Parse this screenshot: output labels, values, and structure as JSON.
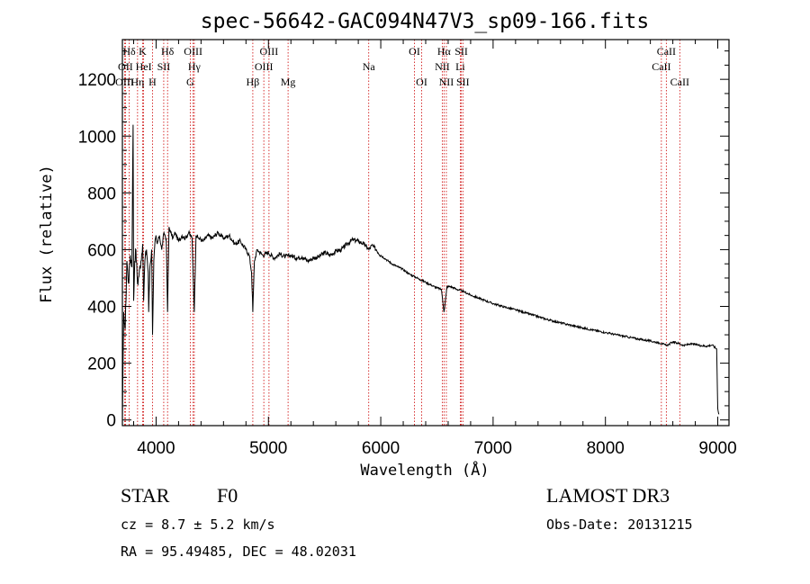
{
  "chart_data": {
    "type": "line",
    "title": "spec-56642-GAC094N47V3_sp09-166.fits",
    "xlabel": "Wavelength (Å)",
    "ylabel": "Flux (relative)",
    "xlim": [
      3700,
      9100
    ],
    "ylim": [
      -20,
      1340
    ],
    "x_ticks": [
      4000,
      5000,
      6000,
      7000,
      8000,
      9000
    ],
    "y_ticks": [
      0,
      200,
      400,
      600,
      800,
      1000,
      1200
    ],
    "x_tick_labels": [
      "4000",
      "5000",
      "6000",
      "7000",
      "8000",
      "9000"
    ],
    "y_tick_labels": [
      "0",
      "200",
      "400",
      "600",
      "800",
      "1000",
      "1200"
    ],
    "series": [
      {
        "name": "flux",
        "x": [
          3700,
          3712,
          3725,
          3740,
          3755,
          3770,
          3785,
          3795,
          3800,
          3810,
          3820,
          3835,
          3850,
          3865,
          3880,
          3889,
          3900,
          3915,
          3930,
          3934,
          3945,
          3960,
          3968,
          3980,
          3995,
          4010,
          4030,
          4050,
          4070,
          4090,
          4102,
          4115,
          4130,
          4150,
          4170,
          4200,
          4230,
          4260,
          4290,
          4320,
          4340,
          4355,
          4380,
          4420,
          4460,
          4500,
          4550,
          4600,
          4650,
          4700,
          4750,
          4800,
          4830,
          4850,
          4861,
          4875,
          4900,
          4950,
          5000,
          5050,
          5100,
          5150,
          5200,
          5250,
          5300,
          5350,
          5400,
          5450,
          5500,
          5550,
          5600,
          5650,
          5700,
          5750,
          5800,
          5850,
          5895,
          5920,
          5960,
          6000,
          6050,
          6100,
          6150,
          6200,
          6250,
          6300,
          6350,
          6400,
          6450,
          6500,
          6540,
          6563,
          6590,
          6620,
          6680,
          6750,
          6800,
          6900,
          7000,
          7100,
          7200,
          7300,
          7400,
          7500,
          7600,
          7700,
          7800,
          7900,
          8000,
          8100,
          8200,
          8300,
          8400,
          8500,
          8540,
          8560,
          8600,
          8650,
          8700,
          8750,
          8800,
          8850,
          8900,
          8950,
          8990,
          9000,
          9010
        ],
        "values": [
          0,
          380,
          320,
          560,
          480,
          580,
          540,
          1040,
          420,
          560,
          600,
          480,
          520,
          560,
          620,
          420,
          560,
          600,
          520,
          380,
          540,
          600,
          300,
          560,
          640,
          620,
          650,
          600,
          660,
          640,
          380,
          680,
          660,
          640,
          660,
          630,
          650,
          640,
          660,
          640,
          380,
          650,
          640,
          630,
          650,
          640,
          660,
          640,
          650,
          620,
          630,
          600,
          580,
          520,
          380,
          560,
          600,
          580,
          590,
          570,
          585,
          575,
          580,
          570,
          575,
          560,
          570,
          575,
          590,
          580,
          595,
          600,
          620,
          635,
          630,
          620,
          600,
          615,
          600,
          580,
          565,
          550,
          540,
          530,
          515,
          505,
          495,
          485,
          475,
          465,
          460,
          380,
          470,
          470,
          460,
          450,
          440,
          425,
          410,
          398,
          388,
          376,
          364,
          352,
          342,
          333,
          324,
          316,
          308,
          300,
          292,
          285,
          278,
          270,
          262,
          265,
          275,
          270,
          262,
          268,
          266,
          262,
          260,
          264,
          250,
          40,
          20
        ]
      }
    ],
    "spectral_lines": [
      {
        "label": "Hδ",
        "wavelength": 3760,
        "row": 1
      },
      {
        "label": "K",
        "wavelength": 3880,
        "row": 1
      },
      {
        "label": "Hδ",
        "wavelength": 4102,
        "row": 1
      },
      {
        "label": "OIII",
        "wavelength": 4330,
        "row": 1
      },
      {
        "label": "OIII",
        "wavelength": 5005,
        "row": 1
      },
      {
        "label": "OI",
        "wavelength": 6300,
        "row": 1
      },
      {
        "label": "Hα",
        "wavelength": 6563,
        "row": 1
      },
      {
        "label": "SII",
        "wavelength": 6717,
        "row": 1
      },
      {
        "label": "CaII",
        "wavelength": 8542,
        "row": 1
      },
      {
        "label": "OII",
        "wavelength": 3727,
        "row": 2
      },
      {
        "label": "HeI",
        "wavelength": 3889,
        "row": 2
      },
      {
        "label": "SII",
        "wavelength": 4068,
        "row": 2
      },
      {
        "label": "Hγ",
        "wavelength": 4340,
        "row": 2
      },
      {
        "label": "OIII",
        "wavelength": 4959,
        "row": 2
      },
      {
        "label": "Na",
        "wavelength": 5893,
        "row": 2
      },
      {
        "label": "NII",
        "wavelength": 6548,
        "row": 2
      },
      {
        "label": "Li",
        "wavelength": 6708,
        "row": 2
      },
      {
        "label": "CaII",
        "wavelength": 8498,
        "row": 2
      },
      {
        "label": "OIII",
        "wavelength": 3720,
        "row": 3
      },
      {
        "label": "Hη",
        "wavelength": 3835,
        "row": 3
      },
      {
        "label": "H",
        "wavelength": 3968,
        "row": 3
      },
      {
        "label": "G",
        "wavelength": 4304,
        "row": 3
      },
      {
        "label": "Hβ",
        "wavelength": 4861,
        "row": 3
      },
      {
        "label": "Mg",
        "wavelength": 5175,
        "row": 3
      },
      {
        "label": "OI",
        "wavelength": 6364,
        "row": 3
      },
      {
        "label": "NII",
        "wavelength": 6584,
        "row": 3
      },
      {
        "label": "SII",
        "wavelength": 6731,
        "row": 3
      },
      {
        "label": "CaII",
        "wavelength": 8662,
        "row": 3
      }
    ]
  },
  "info": {
    "object_type": "STAR",
    "subclass": "F0",
    "survey": "LAMOST DR3",
    "cz": "cz = 8.7 ± 5.2 km/s",
    "obs_date": "Obs-Date: 20131215",
    "coords": "RA =  95.49485, DEC =  48.02031"
  },
  "colors": {
    "spectrum": "#000000",
    "line_markers": "#cc0000",
    "axes": "#000000",
    "background": "#ffffff"
  }
}
